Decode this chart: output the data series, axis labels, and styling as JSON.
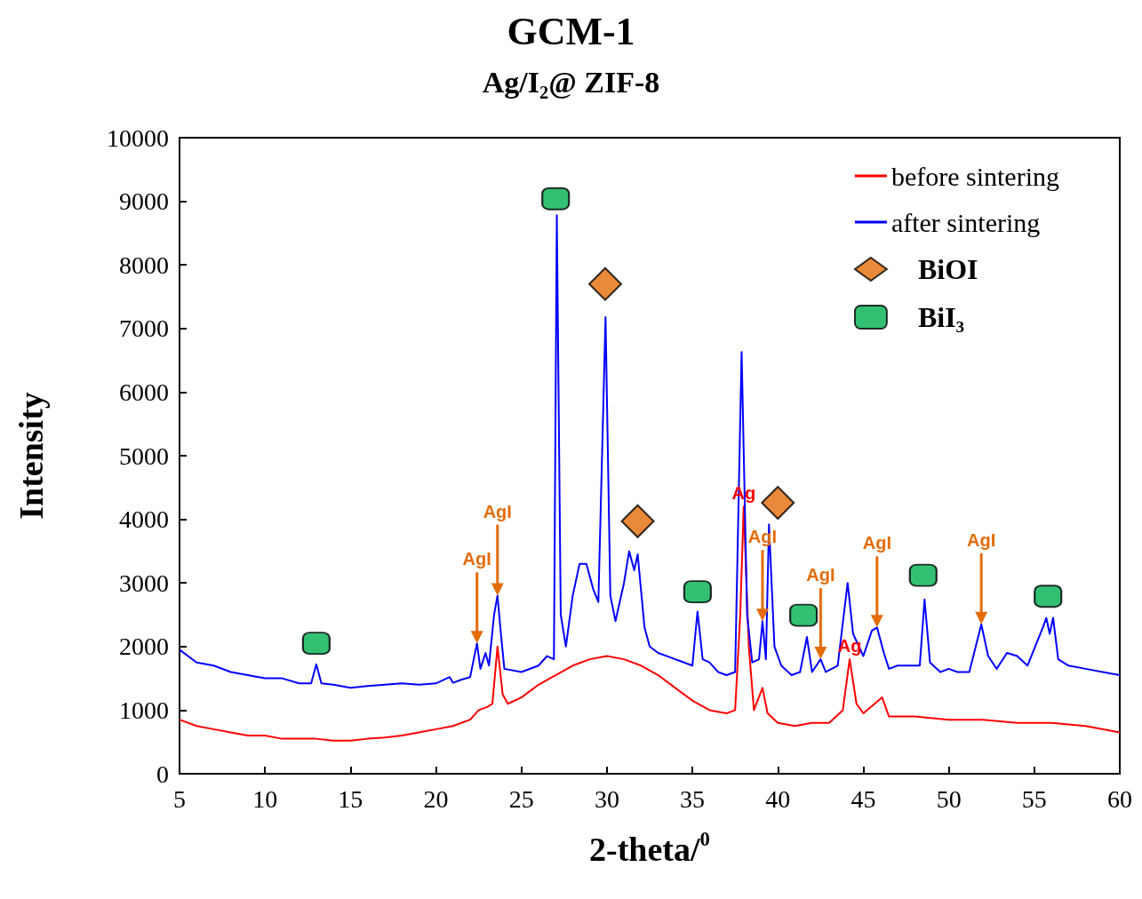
{
  "chart_data": {
    "type": "line",
    "title": "GCM-1",
    "subtitle": "Ag/I₂@ ZIF-8",
    "xlabel": "2-theta/$^{0}$",
    "ylabel": "Intensity",
    "xlim": [
      5,
      60
    ],
    "xticks": [
      5,
      10,
      15,
      20,
      25,
      30,
      35,
      40,
      45,
      50,
      55,
      60
    ],
    "ylim": [
      0,
      10000
    ],
    "yticks": [
      0,
      1000,
      2000,
      3000,
      4000,
      5000,
      6000,
      7000,
      8000,
      9000,
      10000
    ],
    "grid": false,
    "legend": "top right",
    "marker": "none",
    "line_style": "solid",
    "series": [
      {
        "name": "before sintering",
        "color": "#ff0000",
        "x": [
          5,
          6,
          7,
          8,
          9,
          10,
          11,
          12,
          13,
          14,
          15,
          16,
          17,
          18,
          19,
          20,
          21,
          22,
          22.5,
          23,
          23.3,
          23.6,
          23.9,
          24.2,
          25,
          26,
          27,
          28,
          29,
          30,
          31,
          32,
          33,
          34,
          35,
          36,
          37,
          37.5,
          37.8,
          38,
          38.3,
          38.6,
          39.1,
          39.4,
          40,
          41,
          42,
          43,
          43.8,
          44.2,
          44.6,
          45,
          46.1,
          46.5,
          47,
          48,
          50,
          52,
          54,
          56,
          58,
          60
        ],
        "values": [
          850,
          750,
          700,
          650,
          600,
          600,
          550,
          550,
          550,
          520,
          520,
          550,
          570,
          600,
          650,
          700,
          750,
          850,
          1000,
          1050,
          1100,
          2000,
          1250,
          1100,
          1200,
          1400,
          1550,
          1700,
          1800,
          1850,
          1800,
          1700,
          1550,
          1350,
          1150,
          1000,
          950,
          1000,
          2500,
          4200,
          2000,
          1000,
          1350,
          950,
          800,
          750,
          800,
          800,
          1000,
          1800,
          1100,
          950,
          1200,
          900,
          900,
          900,
          850,
          850,
          800,
          800,
          750,
          650
        ]
      },
      {
        "name": "after sintering",
        "color": "#0000ff",
        "x": [
          5,
          6,
          7,
          8,
          9,
          10,
          11,
          12,
          12.7,
          13,
          13.3,
          14,
          15,
          16,
          17,
          18,
          19,
          20,
          20.8,
          21,
          21.5,
          22,
          22.4,
          22.6,
          22.9,
          23.1,
          23.4,
          23.6,
          23.8,
          24,
          25,
          26,
          26.5,
          26.9,
          27.07,
          27.3,
          27.6,
          28,
          28.4,
          28.8,
          29.2,
          29.5,
          29.92,
          30.2,
          30.5,
          31,
          31.3,
          31.6,
          31.8,
          32.2,
          32.5,
          33,
          34,
          35,
          35.3,
          35.6,
          36,
          36.5,
          37,
          37.5,
          37.88,
          38.2,
          38.5,
          38.9,
          39.1,
          39.3,
          39.48,
          39.8,
          40.2,
          40.8,
          41.3,
          41.7,
          42,
          42.5,
          42.8,
          43.5,
          44.08,
          44.4,
          45,
          45.5,
          45.8,
          46.2,
          46.5,
          47,
          47.5,
          48.3,
          48.58,
          48.9,
          49.5,
          50,
          50.5,
          51.2,
          51.9,
          52.3,
          52.8,
          53.4,
          54,
          54.6,
          55.5,
          55.7,
          55.9,
          56.1,
          56.4,
          57,
          58,
          59,
          60
        ],
        "values": [
          1950,
          1750,
          1700,
          1600,
          1550,
          1500,
          1500,
          1420,
          1420,
          1720,
          1420,
          1400,
          1350,
          1380,
          1400,
          1420,
          1400,
          1420,
          1520,
          1430,
          1480,
          1520,
          2050,
          1650,
          1900,
          1700,
          2500,
          2800,
          2200,
          1650,
          1600,
          1700,
          1850,
          1800,
          8780,
          2500,
          2000,
          2800,
          3300,
          3300,
          2900,
          2700,
          7180,
          2800,
          2400,
          3000,
          3500,
          3200,
          3450,
          2300,
          2000,
          1900,
          1800,
          1700,
          2550,
          1800,
          1750,
          1600,
          1550,
          1600,
          6630,
          2500,
          1750,
          1800,
          2400,
          1800,
          3920,
          2000,
          1700,
          1550,
          1600,
          2150,
          1600,
          1800,
          1600,
          1700,
          3000,
          2200,
          1850,
          2250,
          2300,
          1900,
          1650,
          1700,
          1700,
          1700,
          2740,
          1750,
          1600,
          1650,
          1600,
          1600,
          2350,
          1850,
          1650,
          1900,
          1850,
          1700,
          2300,
          2450,
          2200,
          2450,
          1800,
          1700,
          1650,
          1600,
          1550
        ]
      },
      {
        "name": "BiOI",
        "type": "scatter",
        "marker": "diamond",
        "color": "#e36c09",
        "x": [
          29.9,
          31.8,
          40
        ],
        "values": [
          7700,
          3970,
          4260
        ]
      },
      {
        "name": "BiI₃",
        "type": "scatter",
        "marker": "square",
        "color": "#00b050",
        "x": [
          13,
          27,
          35.3,
          41.5,
          48.5,
          55.8
        ],
        "values": [
          2050,
          9040,
          2860,
          2490,
          3120,
          2790
        ]
      }
    ],
    "annotations": [
      {
        "text": "AgI",
        "x": 22.4,
        "y": 2050
      },
      {
        "text": "AgI",
        "x": 23.6,
        "y": 2800
      },
      {
        "text": "AgI",
        "x": 39.1,
        "y": 2400
      },
      {
        "text": "AgI",
        "x": 42.5,
        "y": 1800
      },
      {
        "text": "AgI",
        "x": 45.8,
        "y": 2300
      },
      {
        "text": "AgI",
        "x": 51.9,
        "y": 2350
      },
      {
        "text": "Ag",
        "x": 38,
        "y": 4200
      },
      {
        "text": "Ag",
        "x": 44.2,
        "y": 1800
      }
    ]
  }
}
